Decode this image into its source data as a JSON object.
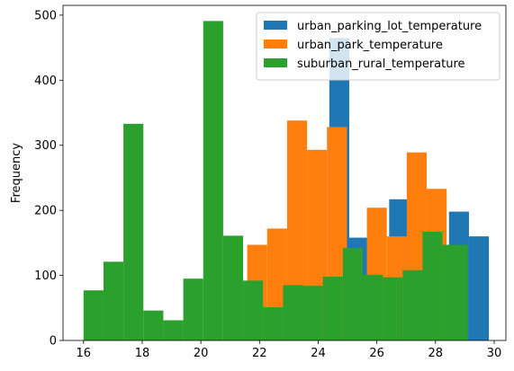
{
  "chart_data": {
    "type": "histogram",
    "xlabel": "",
    "ylabel": "Frequency",
    "xlim": [
      15.3,
      30.4
    ],
    "ylim": [
      0,
      515
    ],
    "x_ticks": [
      16,
      18,
      20,
      22,
      24,
      26,
      28,
      30
    ],
    "y_ticks": [
      0,
      100,
      200,
      300,
      400,
      500
    ],
    "legend_position": "top-right",
    "series": [
      {
        "name": "urban_parking_lot_temperature",
        "color": "#1f77b4",
        "bins": [
          {
            "x0": 24.38,
            "x1": 25.06,
            "count": 465
          },
          {
            "x0": 25.06,
            "x1": 25.74,
            "count": 158
          },
          {
            "x0": 26.42,
            "x1": 27.1,
            "count": 217
          },
          {
            "x0": 28.46,
            "x1": 29.14,
            "count": 198
          },
          {
            "x0": 29.14,
            "x1": 29.82,
            "count": 160
          }
        ]
      },
      {
        "name": "urban_park_temperature",
        "color": "#ff7f0e",
        "bins": [
          {
            "x0": 21.58,
            "x1": 22.26,
            "count": 147
          },
          {
            "x0": 22.26,
            "x1": 22.94,
            "count": 172
          },
          {
            "x0": 22.94,
            "x1": 23.62,
            "count": 338
          },
          {
            "x0": 23.62,
            "x1": 24.3,
            "count": 293
          },
          {
            "x0": 24.3,
            "x1": 24.98,
            "count": 328
          },
          {
            "x0": 25.66,
            "x1": 26.34,
            "count": 204
          },
          {
            "x0": 26.34,
            "x1": 27.02,
            "count": 160
          },
          {
            "x0": 27.02,
            "x1": 27.7,
            "count": 289
          },
          {
            "x0": 27.7,
            "x1": 28.38,
            "count": 233
          }
        ]
      },
      {
        "name": "suburban_rural_temperature",
        "color": "#2ca02c",
        "bins": [
          {
            "x0": 16.0,
            "x1": 16.68,
            "count": 77
          },
          {
            "x0": 16.68,
            "x1": 17.36,
            "count": 121
          },
          {
            "x0": 17.36,
            "x1": 18.04,
            "count": 333
          },
          {
            "x0": 18.04,
            "x1": 18.72,
            "count": 46
          },
          {
            "x0": 18.72,
            "x1": 19.4,
            "count": 31
          },
          {
            "x0": 19.4,
            "x1": 20.08,
            "count": 95
          },
          {
            "x0": 20.08,
            "x1": 20.76,
            "count": 491
          },
          {
            "x0": 20.76,
            "x1": 21.44,
            "count": 161
          },
          {
            "x0": 21.44,
            "x1": 22.12,
            "count": 92
          },
          {
            "x0": 22.12,
            "x1": 22.8,
            "count": 51
          },
          {
            "x0": 22.8,
            "x1": 23.48,
            "count": 85
          },
          {
            "x0": 23.48,
            "x1": 24.16,
            "count": 84
          },
          {
            "x0": 24.16,
            "x1": 24.84,
            "count": 98
          },
          {
            "x0": 24.84,
            "x1": 25.52,
            "count": 142
          },
          {
            "x0": 25.52,
            "x1": 26.2,
            "count": 101
          },
          {
            "x0": 26.2,
            "x1": 26.88,
            "count": 97
          },
          {
            "x0": 26.88,
            "x1": 27.56,
            "count": 108
          },
          {
            "x0": 27.56,
            "x1": 28.24,
            "count": 167
          },
          {
            "x0": 28.24,
            "x1": 28.92,
            "count": 147
          },
          {
            "x0": 28.92,
            "x1": 29.1,
            "count": 147
          }
        ]
      }
    ]
  }
}
